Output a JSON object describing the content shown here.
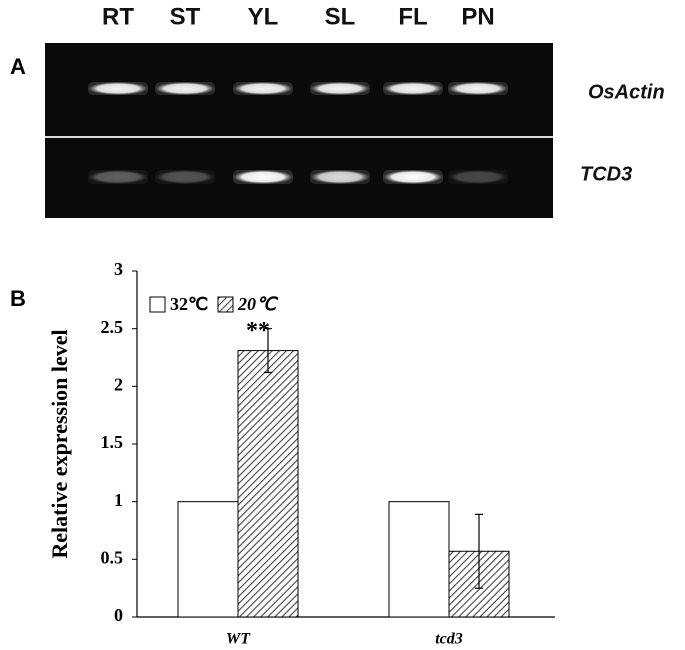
{
  "panel_a": {
    "label": "A",
    "lanes": [
      "RT",
      "ST",
      "YL",
      "SL",
      "FL",
      "PN"
    ],
    "genes": [
      "OsActin",
      "TCD3"
    ]
  },
  "chart_data": {
    "type": "bar",
    "panel_label": "B",
    "ylabel": "Relative expression level",
    "categories": [
      "WT",
      "tcd3"
    ],
    "series": [
      {
        "name": "32℃",
        "color": "#ffffff",
        "values": [
          1,
          1
        ]
      },
      {
        "name": "20℃",
        "color": "#555555",
        "hatch": true,
        "values": [
          2.31,
          0.57
        ],
        "errors": [
          0.19,
          0.32
        ]
      }
    ],
    "annotations": [
      {
        "category": 0,
        "series": 1,
        "text": "**"
      }
    ],
    "ylim": [
      0,
      3
    ],
    "yticks": [
      0,
      0.5,
      1,
      1.5,
      2,
      2.5,
      3
    ],
    "legend": "top-left"
  }
}
